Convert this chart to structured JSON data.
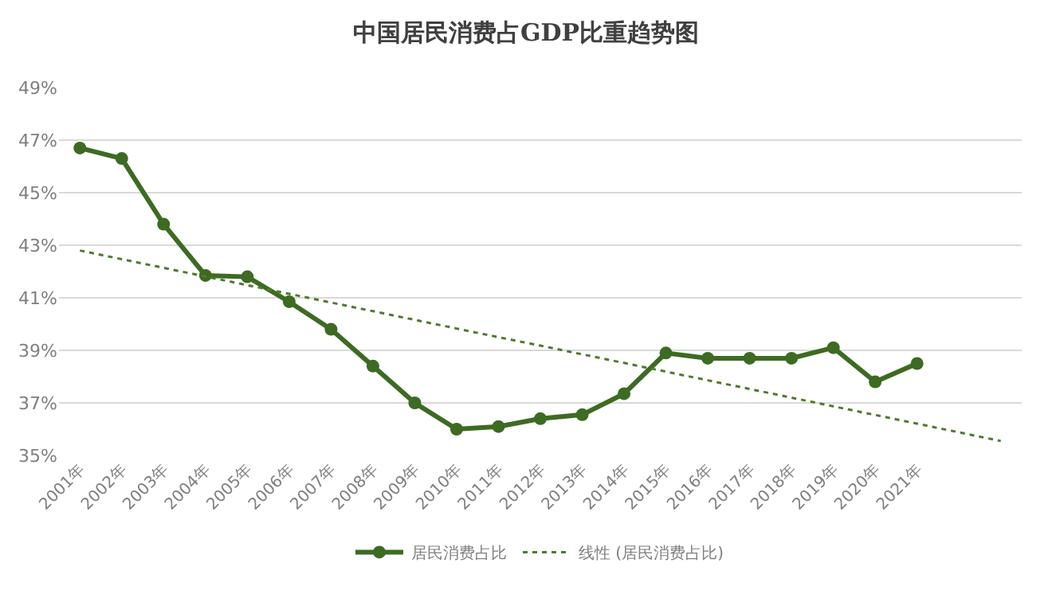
{
  "chart_data": {
    "type": "line",
    "title": "中国居民消费占GDP比重趋势图",
    "categories": [
      "2001年",
      "2002年",
      "2003年",
      "2004年",
      "2005年",
      "2006年",
      "2007年",
      "2008年",
      "2009年",
      "2010年",
      "2011年",
      "2012年",
      "2013年",
      "2014年",
      "2015年",
      "2016年",
      "2017年",
      "2018年",
      "2019年",
      "2020年",
      "2021年",
      null,
      null
    ],
    "series": [
      {
        "name": "居民消费占比",
        "color": "#3d6b22",
        "marker": "circle",
        "line_style": "solid",
        "values": [
          46.7,
          46.3,
          43.8,
          41.85,
          41.8,
          40.85,
          39.8,
          38.4,
          37.0,
          36.0,
          36.1,
          36.4,
          36.55,
          37.35,
          38.9,
          38.7,
          38.7,
          38.7,
          39.1,
          37.8,
          38.5,
          null,
          null
        ]
      },
      {
        "name": "线性 (居民消费占比)",
        "color": "#4f7a2e",
        "marker": "none",
        "line_style": "dotted",
        "values": [
          42.8,
          42.47,
          42.14,
          41.81,
          41.48,
          41.15,
          40.82,
          40.49,
          40.16,
          39.83,
          39.5,
          39.18,
          38.85,
          38.52,
          38.19,
          37.86,
          37.53,
          37.2,
          36.87,
          36.54,
          36.21,
          35.88,
          35.55
        ]
      }
    ],
    "ylim": [
      35,
      49
    ],
    "yticks": [
      {
        "value": 35,
        "label": "35%"
      },
      {
        "value": 37,
        "label": "37%"
      },
      {
        "value": 39,
        "label": "39%"
      },
      {
        "value": 41,
        "label": "41%"
      },
      {
        "value": 43,
        "label": "43%"
      },
      {
        "value": 45,
        "label": "45%"
      },
      {
        "value": 47,
        "label": "47%"
      },
      {
        "value": 49,
        "label": "49%"
      }
    ],
    "grid": "y",
    "legend": "bottom"
  }
}
